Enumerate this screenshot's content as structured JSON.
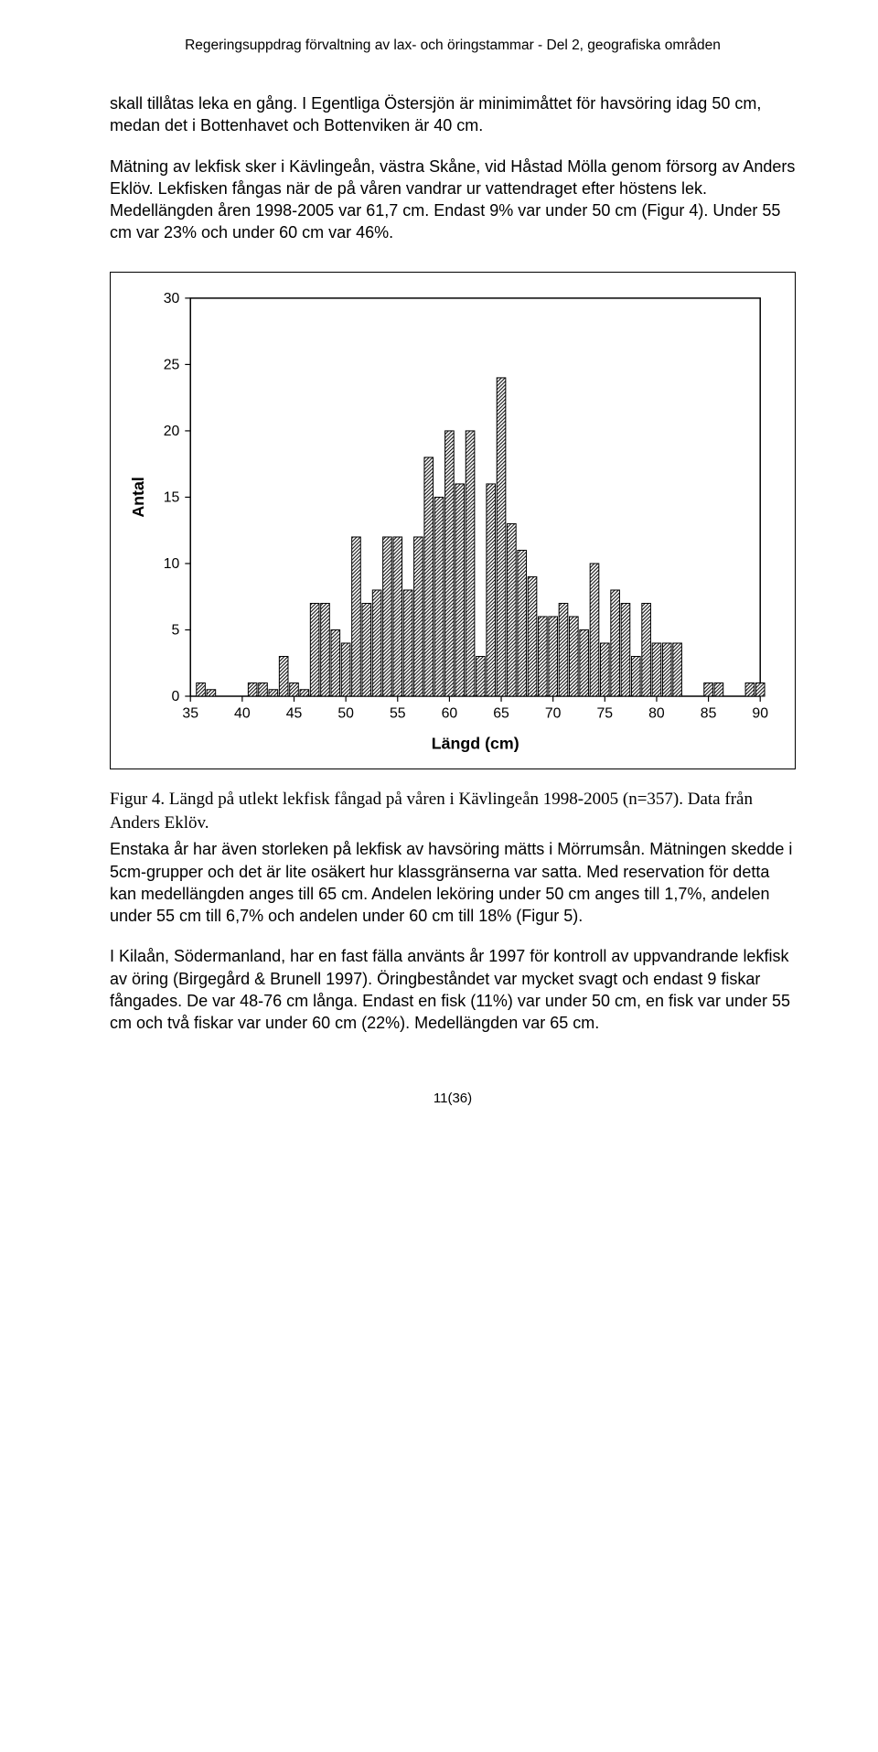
{
  "header": {
    "text": "Regeringsuppdrag förvaltning av lax- och öringstammar  -  Del 2, geografiska områden"
  },
  "paragraphs": {
    "p1": "skall tillåtas leka en gång. I Egentliga Östersjön är minimimåttet för havsöring idag 50 cm, medan det i Bottenhavet och Bottenviken är 40 cm.",
    "p2": "Mätning av lekfisk sker i Kävlingeån, västra Skåne, vid Håstad Mölla genom försorg av Anders Eklöv. Lekfisken fångas när de på våren vandrar ur vattendraget efter höstens lek. Medellängden åren 1998-2005 var 61,7 cm. Endast 9% var under 50 cm (Figur 4). Under 55 cm var 23% och under 60 cm var 46%.",
    "p3": "Enstaka år har även storleken på lekfisk av havsöring mätts i Mörrumsån. Mätningen skedde i 5cm-grupper och det är lite osäkert hur klassgränserna var satta. Med reservation för detta kan medellängden anges till 65 cm. Andelen leköring under 50 cm anges till 1,7%, andelen under 55 cm till 6,7% och andelen under 60 cm till 18% (Figur 5).",
    "p4": "I Kilaån, Södermanland, har en fast fälla använts år 1997 för kontroll av uppvandrande lekfisk av öring (Birgegård & Brunell 1997). Öringbeståndet var mycket svagt och endast 9 fiskar fångades. De var 48-76 cm långa. Endast en fisk (11%) var under 50 cm, en fisk var under 55 cm och två fiskar var under 60 cm (22%). Medellängden var 65 cm."
  },
  "caption": {
    "text": "Figur 4. Längd på utlekt lekfisk fångad på våren i Kävlingeån 1998-2005 (n=357). Data från Anders Eklöv."
  },
  "chart": {
    "type": "bar",
    "title": "",
    "xlabel": "Längd (cm)",
    "ylabel": "Antal",
    "label_fontsize": 18,
    "tick_fontsize": 16,
    "xlim": [
      35,
      90
    ],
    "ylim": [
      0,
      30
    ],
    "xtick_step": 5,
    "ytick_step": 5,
    "xticks": [
      35,
      40,
      45,
      50,
      55,
      60,
      65,
      70,
      75,
      80,
      85,
      90
    ],
    "yticks": [
      0,
      5,
      10,
      15,
      20,
      25,
      30
    ],
    "categories": [
      36,
      37,
      41,
      42,
      43,
      44,
      45,
      46,
      47,
      48,
      49,
      50,
      51,
      52,
      53,
      54,
      55,
      56,
      57,
      58,
      59,
      60,
      61,
      62,
      63,
      64,
      65,
      66,
      67,
      68,
      69,
      70,
      71,
      72,
      73,
      74,
      75,
      76,
      77,
      78,
      79,
      80,
      81,
      82,
      85,
      86,
      89,
      90
    ],
    "values": [
      1,
      0.5,
      1,
      1,
      0.5,
      3,
      1,
      0.5,
      7,
      7,
      5,
      4,
      12,
      7,
      8,
      12,
      12,
      8,
      12,
      18,
      15,
      20,
      16,
      20,
      3,
      16,
      24,
      13,
      11,
      9,
      6,
      6,
      7,
      6,
      5,
      10,
      4,
      8,
      7,
      3,
      7,
      4,
      4,
      4,
      1,
      1,
      1,
      1
    ],
    "bar_fill": "#ffffff",
    "bar_stroke": "#000000",
    "bar_hatch": true,
    "hatch_spacing": 4,
    "bar_width": 0.85,
    "background_color": "#ffffff",
    "axis_color": "#000000",
    "axis_stroke_width": 1.5,
    "tick_length": 6
  },
  "footer": {
    "text": "11(36)"
  }
}
